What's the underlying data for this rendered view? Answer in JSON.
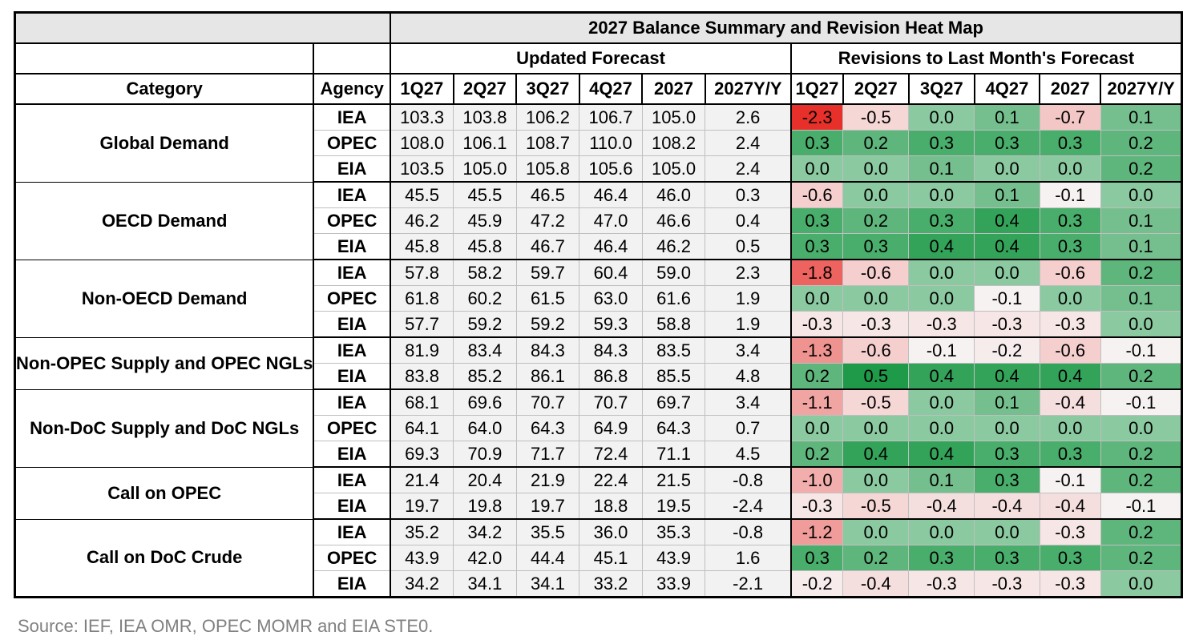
{
  "chart_data": {
    "type": "table",
    "title": "2027 Balance Summary and Revision Heat Map",
    "group_headers": {
      "updated": "Updated Forecast",
      "revisions": "Revisions to Last Month's Forecast"
    },
    "column_headers": {
      "category": "Category",
      "agency": "Agency",
      "periods": [
        "1Q27",
        "2Q27",
        "3Q27",
        "4Q27",
        "2027",
        "2027Y/Y"
      ]
    },
    "groups": [
      {
        "category": "Global Demand",
        "rows": [
          {
            "agency": "IEA",
            "updated": [
              "103.3",
              "103.8",
              "106.2",
              "106.7",
              "105.0",
              "2.6"
            ],
            "revisions": [
              "-2.3",
              "-0.5",
              "0.0",
              "0.1",
              "-0.7",
              "0.1"
            ]
          },
          {
            "agency": "OPEC",
            "updated": [
              "108.0",
              "106.1",
              "108.7",
              "110.0",
              "108.2",
              "2.4"
            ],
            "revisions": [
              "0.3",
              "0.2",
              "0.3",
              "0.3",
              "0.3",
              "0.2"
            ]
          },
          {
            "agency": "EIA",
            "updated": [
              "103.5",
              "105.0",
              "105.8",
              "105.6",
              "105.0",
              "2.4"
            ],
            "revisions": [
              "0.0",
              "0.0",
              "0.1",
              "0.0",
              "0.0",
              "0.2"
            ]
          }
        ]
      },
      {
        "category": "OECD Demand",
        "rows": [
          {
            "agency": "IEA",
            "updated": [
              "45.5",
              "45.5",
              "46.5",
              "46.4",
              "46.0",
              "0.3"
            ],
            "revisions": [
              "-0.6",
              "0.0",
              "0.0",
              "0.1",
              "-0.1",
              "0.0"
            ]
          },
          {
            "agency": "OPEC",
            "updated": [
              "46.2",
              "45.9",
              "47.2",
              "47.0",
              "46.6",
              "0.4"
            ],
            "revisions": [
              "0.3",
              "0.2",
              "0.3",
              "0.4",
              "0.3",
              "0.1"
            ]
          },
          {
            "agency": "EIA",
            "updated": [
              "45.8",
              "45.8",
              "46.7",
              "46.4",
              "46.2",
              "0.5"
            ],
            "revisions": [
              "0.3",
              "0.3",
              "0.4",
              "0.4",
              "0.3",
              "0.1"
            ]
          }
        ]
      },
      {
        "category": "Non-OECD Demand",
        "rows": [
          {
            "agency": "IEA",
            "updated": [
              "57.8",
              "58.2",
              "59.7",
              "60.4",
              "59.0",
              "2.3"
            ],
            "revisions": [
              "-1.8",
              "-0.6",
              "0.0",
              "0.0",
              "-0.6",
              "0.2"
            ]
          },
          {
            "agency": "OPEC",
            "updated": [
              "61.8",
              "60.2",
              "61.5",
              "63.0",
              "61.6",
              "1.9"
            ],
            "revisions": [
              "0.0",
              "0.0",
              "0.0",
              "-0.1",
              "0.0",
              "0.1"
            ]
          },
          {
            "agency": "EIA",
            "updated": [
              "57.7",
              "59.2",
              "59.2",
              "59.3",
              "58.8",
              "1.9"
            ],
            "revisions": [
              "-0.3",
              "-0.3",
              "-0.3",
              "-0.3",
              "-0.3",
              "0.0"
            ]
          }
        ]
      },
      {
        "category": "Non-OPEC Supply and OPEC NGLs",
        "rows": [
          {
            "agency": "IEA",
            "updated": [
              "81.9",
              "83.4",
              "84.3",
              "84.3",
              "83.5",
              "3.4"
            ],
            "revisions": [
              "-1.3",
              "-0.6",
              "-0.1",
              "-0.2",
              "-0.6",
              "-0.1"
            ]
          },
          {
            "agency": "EIA",
            "updated": [
              "83.8",
              "85.2",
              "86.1",
              "86.8",
              "85.5",
              "4.8"
            ],
            "revisions": [
              "0.2",
              "0.5",
              "0.4",
              "0.4",
              "0.4",
              "0.2"
            ]
          }
        ]
      },
      {
        "category": "Non-DoC Supply and DoC NGLs",
        "rows": [
          {
            "agency": "IEA",
            "updated": [
              "68.1",
              "69.6",
              "70.7",
              "70.7",
              "69.7",
              "3.4"
            ],
            "revisions": [
              "-1.1",
              "-0.5",
              "0.0",
              "0.1",
              "-0.4",
              "-0.1"
            ]
          },
          {
            "agency": "OPEC",
            "updated": [
              "64.1",
              "64.0",
              "64.3",
              "64.9",
              "64.3",
              "0.7"
            ],
            "revisions": [
              "0.0",
              "0.0",
              "0.0",
              "0.0",
              "0.0",
              "0.0"
            ]
          },
          {
            "agency": "EIA",
            "updated": [
              "69.3",
              "70.9",
              "71.7",
              "72.4",
              "71.1",
              "4.5"
            ],
            "revisions": [
              "0.2",
              "0.4",
              "0.4",
              "0.3",
              "0.3",
              "0.2"
            ]
          }
        ]
      },
      {
        "category": "Call on OPEC",
        "rows": [
          {
            "agency": "IEA",
            "updated": [
              "21.4",
              "20.4",
              "21.9",
              "22.4",
              "21.5",
              "-0.8"
            ],
            "revisions": [
              "-1.0",
              "0.0",
              "0.1",
              "0.3",
              "-0.1",
              "0.2"
            ]
          },
          {
            "agency": "EIA",
            "updated": [
              "19.7",
              "19.8",
              "19.7",
              "18.8",
              "19.5",
              "-2.4"
            ],
            "revisions": [
              "-0.3",
              "-0.5",
              "-0.4",
              "-0.4",
              "-0.4",
              "-0.1"
            ]
          }
        ]
      },
      {
        "category": "Call on DoC Crude",
        "rows": [
          {
            "agency": "IEA",
            "updated": [
              "35.2",
              "34.2",
              "35.5",
              "36.0",
              "35.3",
              "-0.8"
            ],
            "revisions": [
              "-1.2",
              "0.0",
              "0.0",
              "0.0",
              "-0.3",
              "0.2"
            ]
          },
          {
            "agency": "OPEC",
            "updated": [
              "43.9",
              "42.0",
              "44.4",
              "45.1",
              "43.9",
              "1.6"
            ],
            "revisions": [
              "0.3",
              "0.2",
              "0.3",
              "0.3",
              "0.3",
              "0.2"
            ]
          },
          {
            "agency": "EIA",
            "updated": [
              "34.2",
              "34.1",
              "34.1",
              "33.2",
              "33.9",
              "-2.1"
            ],
            "revisions": [
              "-0.2",
              "-0.4",
              "-0.3",
              "-0.3",
              "-0.3",
              "0.0"
            ]
          }
        ]
      }
    ],
    "heat_colors": {
      "strong_negative": "#e8302b",
      "neutral": "#f7f7f7",
      "strong_positive": "#1e9a48"
    },
    "source": "Source: IEF, IEA OMR, OPEC MOMR and EIA STE0."
  }
}
